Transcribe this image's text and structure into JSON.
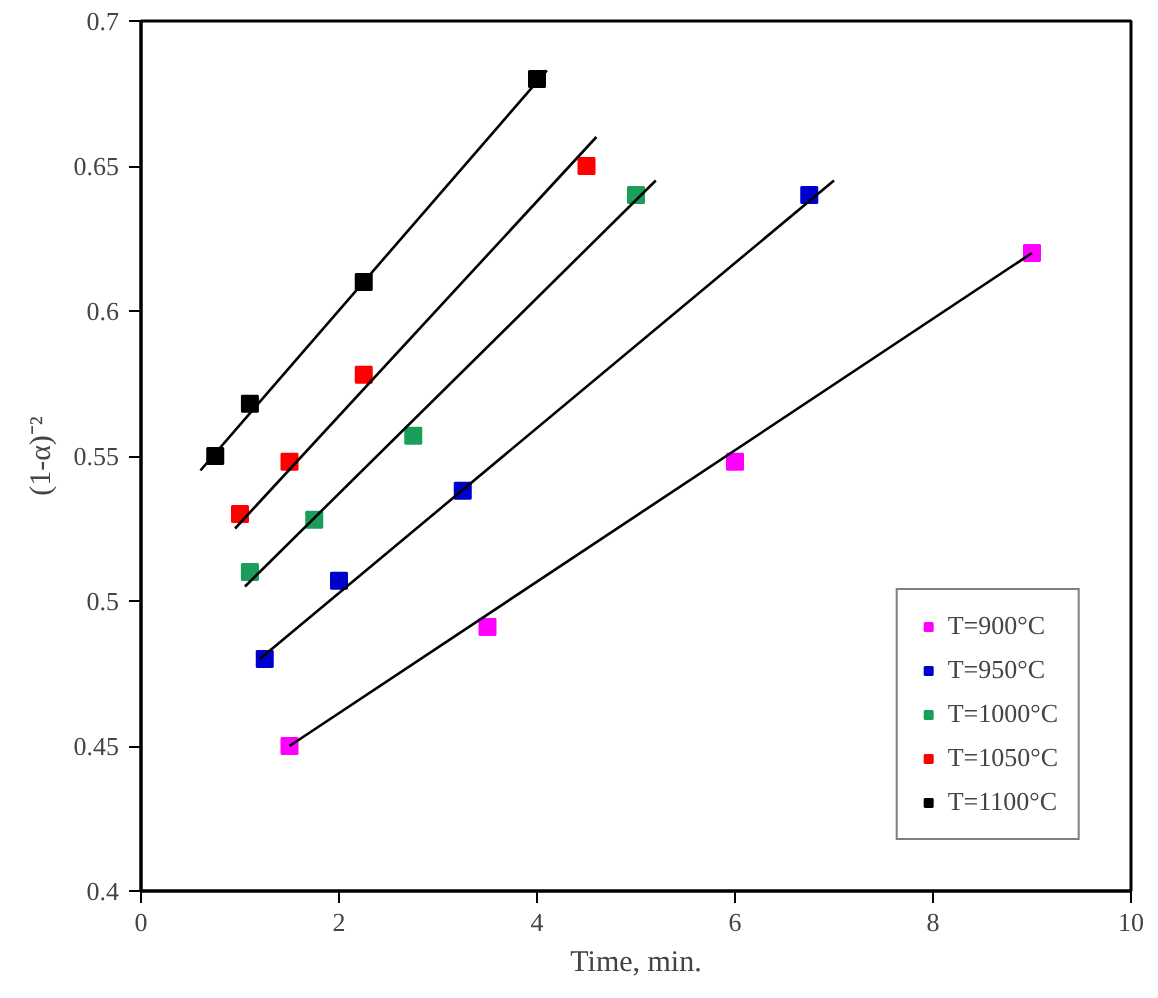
{
  "chart_data": {
    "type": "scatter",
    "xlabel": "Time, min.",
    "ylabel": "(1-α)⁻²",
    "xlim": [
      0,
      10
    ],
    "ylim": [
      0.4,
      0.7
    ],
    "xticks": [
      0,
      2,
      4,
      6,
      8,
      10
    ],
    "yticks": [
      0.4,
      0.45,
      0.5,
      0.55,
      0.6,
      0.65,
      0.7
    ],
    "grid": false,
    "legend": "bottom right",
    "series": [
      {
        "name": "T=900°C",
        "color": "#ff00ff",
        "marker": "square",
        "x": [
          1.5,
          3.5,
          6,
          9
        ],
        "values": [
          0.45,
          0.491,
          0.548,
          0.62
        ]
      },
      {
        "name": "T=950°C",
        "color": "#0000cc",
        "marker": "square",
        "x": [
          1.25,
          2,
          3.25,
          6.75
        ],
        "values": [
          0.48,
          0.507,
          0.538,
          0.64
        ]
      },
      {
        "name": "T=1000°C",
        "color": "#1a9e5a",
        "marker": "square",
        "x": [
          1.1,
          1.75,
          2.75,
          5
        ],
        "values": [
          0.51,
          0.528,
          0.557,
          0.64
        ]
      },
      {
        "name": "T=1050°C",
        "color": "#ff0000",
        "marker": "square",
        "x": [
          1,
          1.5,
          2.25,
          4.5
        ],
        "values": [
          0.53,
          0.548,
          0.578,
          0.65
        ]
      },
      {
        "name": "T=1100°C",
        "color": "#000000",
        "marker": "square",
        "x": [
          0.75,
          1.1,
          2.25,
          4
        ],
        "values": [
          0.55,
          0.568,
          0.61,
          0.68
        ]
      },
      {
        "type": "line",
        "color": "#000000",
        "x": [
          1.5,
          9
        ],
        "values": [
          0.45,
          0.62
        ]
      },
      {
        "type": "line",
        "color": "#000000",
        "x": [
          1.2,
          7
        ],
        "values": [
          0.48,
          0.645
        ]
      },
      {
        "type": "line",
        "color": "#000000",
        "x": [
          1.05,
          5.2
        ],
        "values": [
          0.505,
          0.645
        ]
      },
      {
        "type": "line",
        "color": "#000000",
        "x": [
          0.95,
          4.6
        ],
        "values": [
          0.525,
          0.66
        ]
      },
      {
        "type": "line",
        "color": "#000000",
        "x": [
          0.6,
          4.1
        ],
        "values": [
          0.545,
          0.683
        ]
      }
    ]
  }
}
